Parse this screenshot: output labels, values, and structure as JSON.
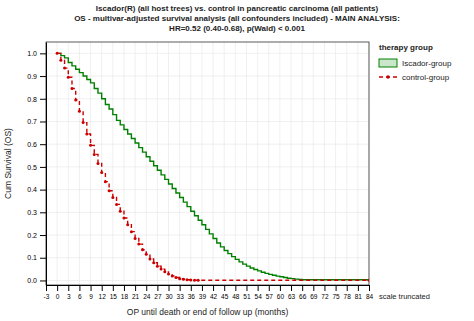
{
  "chart_data": {
    "type": "step",
    "title": [
      "Iscador(R) (all host trees) vs. control in pancreatic carcinoma (all patients)",
      "OS - multivar-adjusted survival analysis (all confounders included) - MAIN ANALYSIS:",
      "HR=0.52 (0.40-0.68), p(Wald) < 0.001"
    ],
    "xlabel": "OP until death or end of follow up (months)",
    "ylabel": "Cum Survival (OS)",
    "legend_title": "therapy group",
    "legend": "right",
    "annotations": [
      "scale truncated"
    ],
    "grid": true,
    "xlim": [
      -3,
      84
    ],
    "ylim": [
      -0.02,
      1.05
    ],
    "xticks": [
      -3,
      0,
      3,
      6,
      9,
      12,
      15,
      18,
      21,
      24,
      27,
      30,
      33,
      36,
      39,
      42,
      45,
      48,
      51,
      54,
      57,
      60,
      63,
      66,
      69,
      72,
      75,
      78,
      81,
      84
    ],
    "yticks": [
      {
        "value": 0.0,
        "label": "0.0"
      },
      0.1,
      0.2,
      0.3,
      0.4,
      0.5,
      0.6,
      0.7,
      0.8,
      0.9,
      {
        "value": 1.0,
        "label": "1.0"
      }
    ],
    "series": [
      {
        "name": "Iscador-group",
        "color": "#008000",
        "line_style": "solid",
        "x": [
          0,
          1,
          2,
          3,
          4,
          5,
          6,
          7,
          8,
          9,
          10,
          11,
          12,
          13,
          14,
          15,
          16,
          17,
          18,
          19,
          20,
          21,
          22,
          23,
          24,
          25,
          26,
          27,
          28,
          29,
          30,
          31,
          32,
          33,
          34,
          35,
          36,
          37,
          38,
          39,
          40,
          41,
          42,
          43,
          44,
          45,
          46,
          47,
          48,
          49,
          50,
          51,
          52,
          53,
          54,
          55,
          56,
          57,
          58,
          59,
          60,
          61,
          62,
          63,
          64,
          65,
          66,
          84
        ],
        "values": [
          1.0,
          0.99,
          0.98,
          0.96,
          0.945,
          0.93,
          0.915,
          0.9,
          0.885,
          0.87,
          0.845,
          0.825,
          0.8,
          0.775,
          0.755,
          0.73,
          0.705,
          0.685,
          0.665,
          0.645,
          0.625,
          0.605,
          0.585,
          0.565,
          0.545,
          0.525,
          0.505,
          0.485,
          0.465,
          0.445,
          0.425,
          0.405,
          0.385,
          0.365,
          0.345,
          0.325,
          0.305,
          0.285,
          0.265,
          0.245,
          0.225,
          0.205,
          0.185,
          0.165,
          0.148,
          0.132,
          0.118,
          0.105,
          0.093,
          0.082,
          0.072,
          0.063,
          0.055,
          0.048,
          0.042,
          0.036,
          0.031,
          0.027,
          0.023,
          0.019,
          0.016,
          0.013,
          0.01,
          0.008,
          0.006,
          0.004,
          0.003,
          0.001
        ]
      },
      {
        "name": "control-group",
        "color": "#cc0000",
        "line_style": "dashed",
        "marker": "dot",
        "x": [
          0,
          1,
          2,
          3,
          4,
          5,
          6,
          7,
          8,
          9,
          10,
          11,
          12,
          13,
          14,
          15,
          16,
          17,
          18,
          19,
          20,
          21,
          22,
          23,
          24,
          25,
          26,
          27,
          28,
          29,
          30,
          31,
          32,
          33,
          34,
          35,
          36,
          37,
          38,
          84
        ],
        "values": [
          1.0,
          0.97,
          0.935,
          0.895,
          0.845,
          0.795,
          0.745,
          0.695,
          0.645,
          0.595,
          0.555,
          0.515,
          0.475,
          0.435,
          0.395,
          0.365,
          0.335,
          0.305,
          0.275,
          0.245,
          0.215,
          0.185,
          0.16,
          0.135,
          0.115,
          0.095,
          0.078,
          0.063,
          0.05,
          0.038,
          0.028,
          0.02,
          0.013,
          0.008,
          0.005,
          0.003,
          0.002,
          0.001,
          0.001,
          0.001
        ]
      }
    ]
  }
}
